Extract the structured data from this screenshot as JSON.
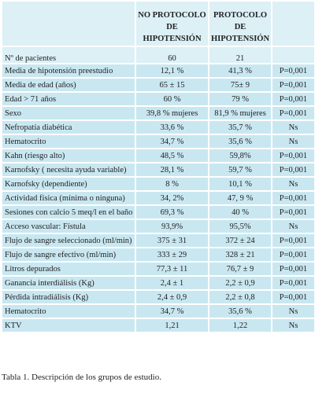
{
  "header": {
    "columns": [
      [
        "NO PROTOCOLO",
        "DE HIPOTENSIÓN"
      ],
      [
        "PROTOCOLO DE",
        "HIPOTENSIÓN"
      ]
    ],
    "patients_row": [
      "Nº de pacientes",
      "60",
      "21"
    ]
  },
  "table": {
    "rows": [
      [
        "Media de hipotensión preestudio",
        "12,1 %",
        "41,3 %",
        "P=0,001"
      ],
      [
        "Media de edad (años)",
        "65 ± 15",
        "75± 9",
        "P=0,001"
      ],
      [
        "Edad > 71 años",
        "60 %",
        "79 %",
        "P=0,001"
      ],
      [
        "Sexo",
        "39,8 % mujeres",
        "81,9 % mujeres",
        "P=0,001"
      ],
      [
        "Nefropatía diabética",
        "33,6 %",
        "35,7 %",
        "Ns"
      ],
      [
        "Hematocrito",
        "34,7 %",
        "35,6 %",
        "Ns"
      ],
      [
        "Kahn (riesgo alto)",
        "48,5 %",
        "59,8%",
        "P=0,001"
      ],
      [
        "Karnofsky ( necesita ayuda variable)",
        "28,1 %",
        "59,7 %",
        "P=0,001"
      ],
      [
        "Karnofsky (dependiente)",
        "8 %",
        "10,1 %",
        "Ns"
      ],
      [
        "Actividad física (mínima o ninguna)",
        "34, 2%",
        "47, 9 %",
        "P=0,001"
      ],
      [
        "Sesiones con calcio 5 meq/l en el baño",
        "69,3 %",
        "40 %",
        "P=0,001"
      ],
      [
        "Acceso vascular: Fístula",
        "93,9%",
        "95,5%",
        "Ns"
      ],
      [
        "Flujo de sangre seleccionado (ml/min)",
        "375 ± 31",
        "372 ± 24",
        "P=0,001"
      ],
      [
        "Flujo de sangre efectivo (ml/min)",
        "333 ± 29",
        "328 ± 21",
        "P=0,001"
      ],
      [
        "Litros depurados",
        "77,3 ± 11",
        "76,7 ± 9",
        "P=0,001"
      ],
      [
        "Ganancia interdiálisis (Kg)",
        "2,4 ± 1",
        "2,2 ± 0,9",
        "P=0,001"
      ],
      [
        "Pérdida intradiálisis (Kg)",
        "2,4 ± 0,9",
        "2,2 ± 0,8",
        "P=0,001"
      ],
      [
        "Hematocrito",
        "34,7 %",
        "35,6 %",
        "Ns"
      ],
      [
        "KTV",
        "1,21",
        "1,22",
        "Ns"
      ]
    ]
  },
  "caption": "Tabla 1. Descripción de los grupos de estudio."
}
